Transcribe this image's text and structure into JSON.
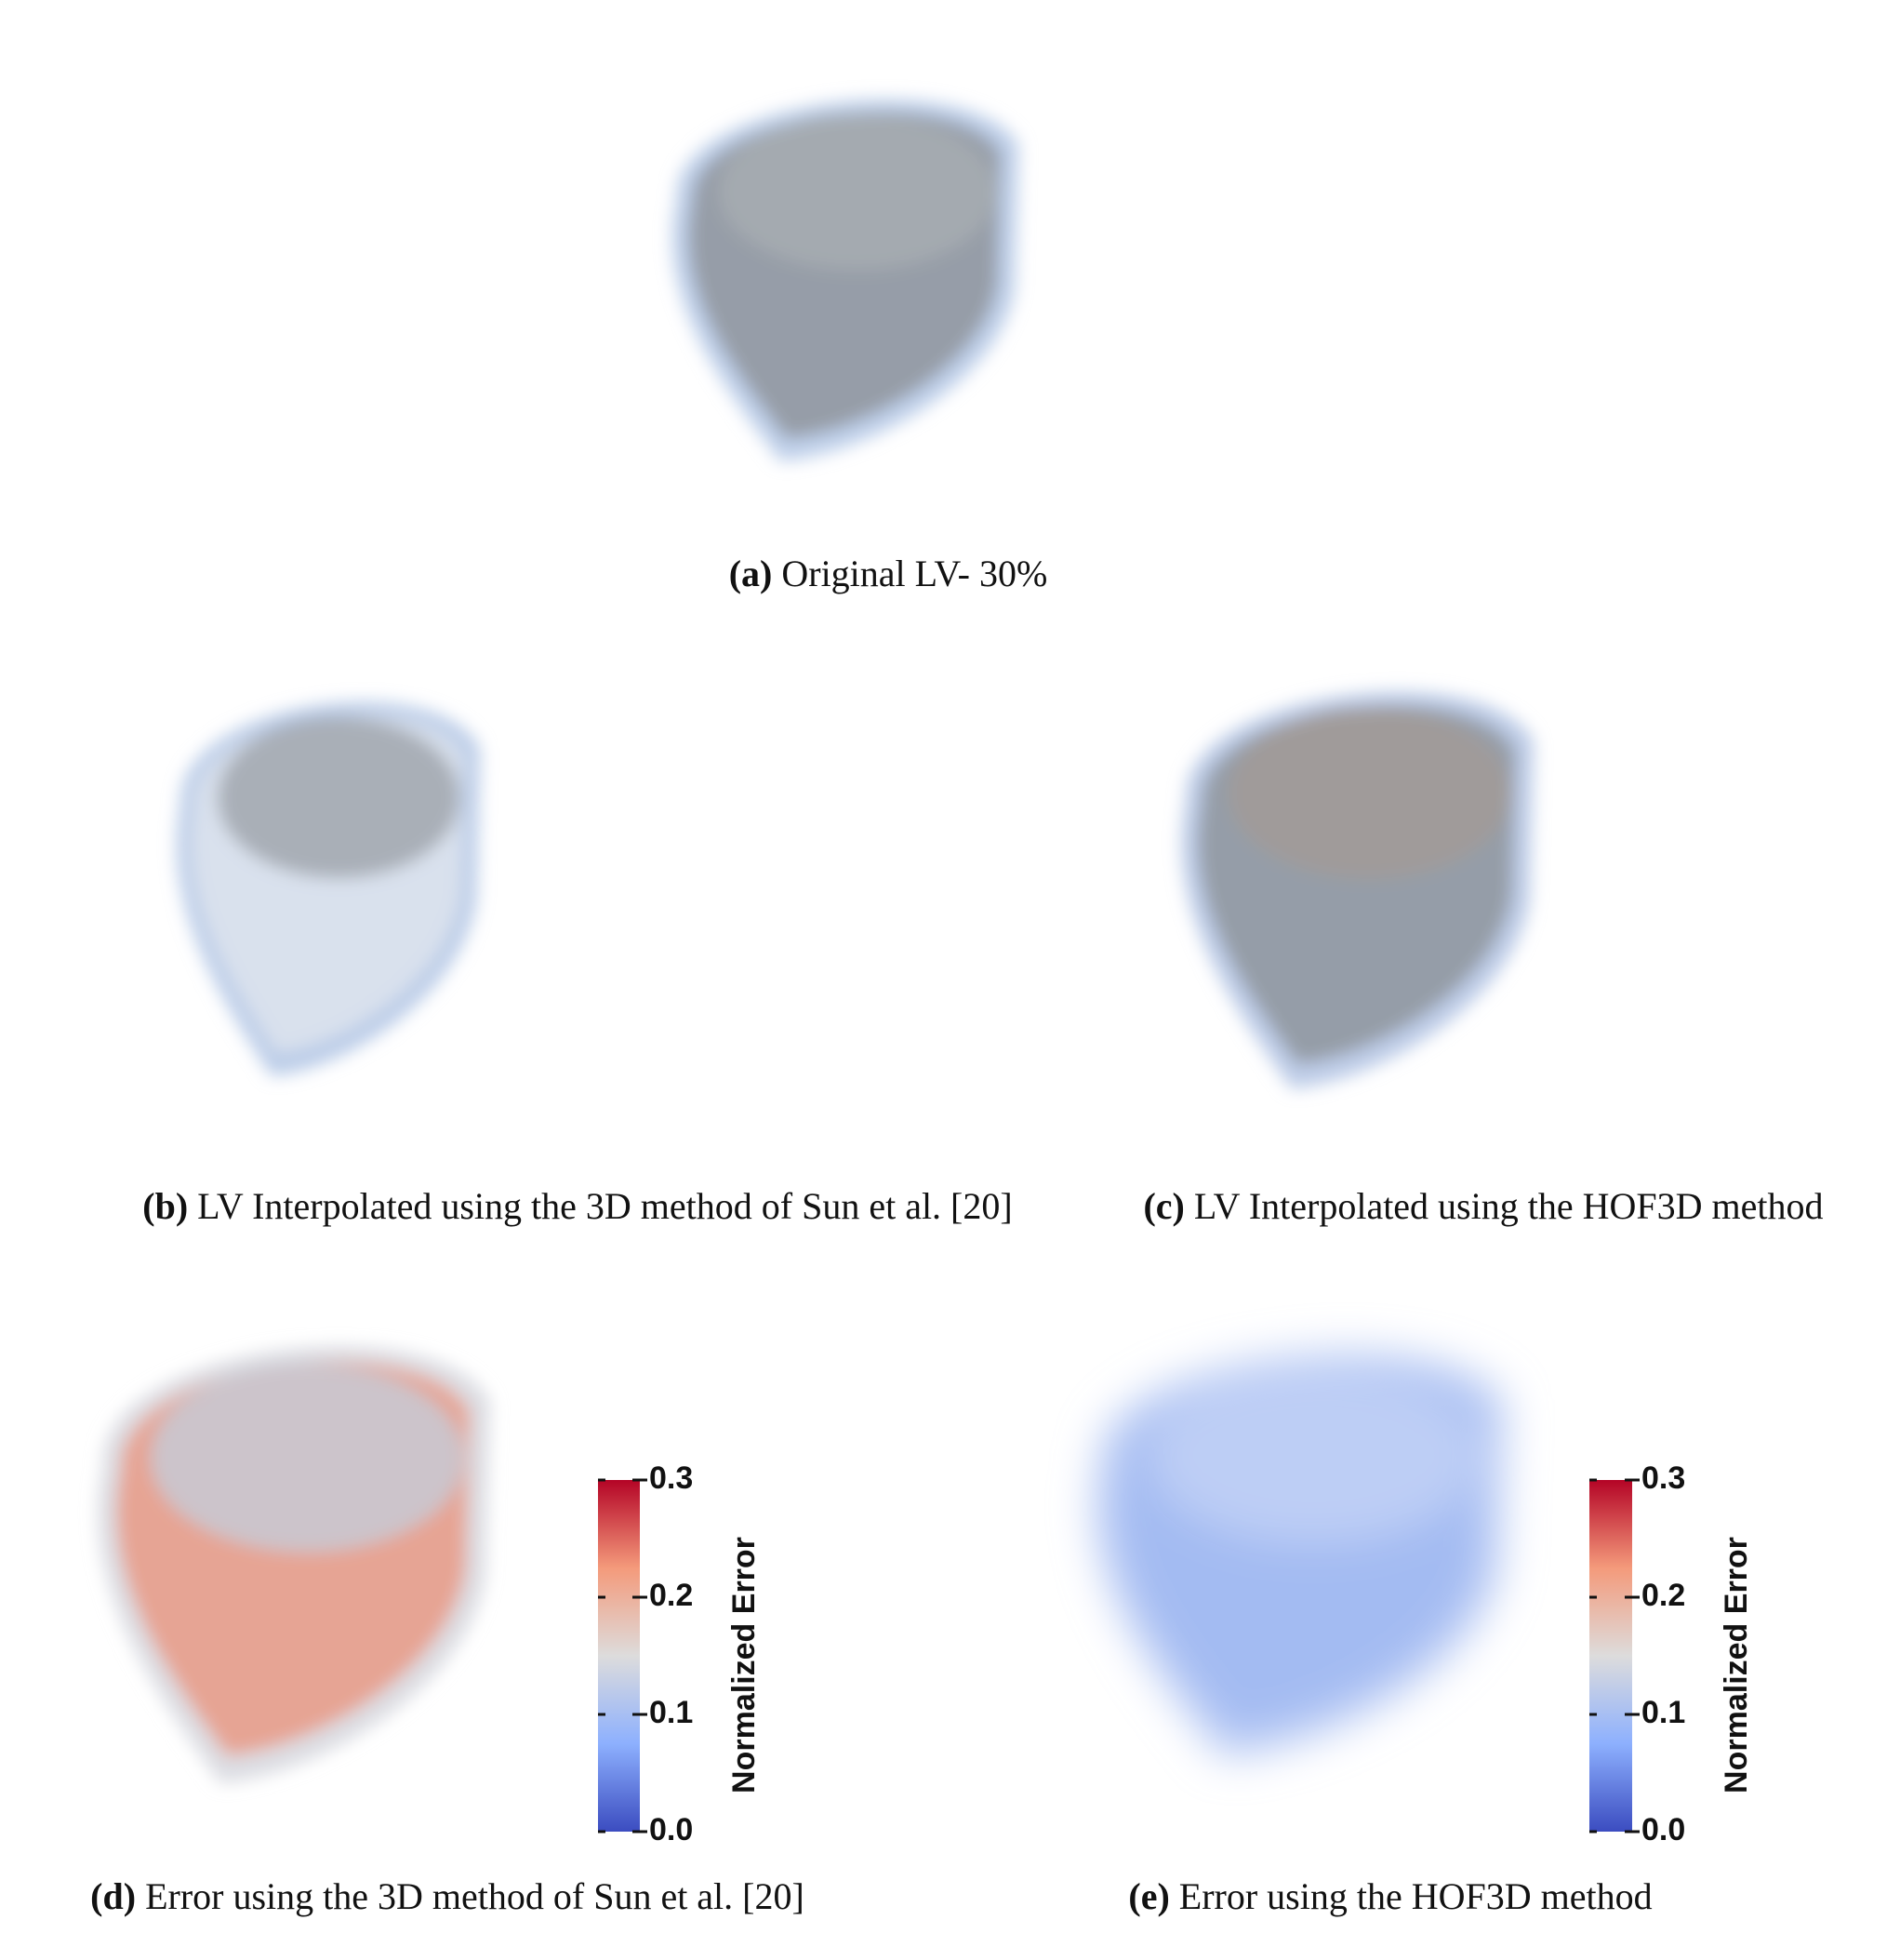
{
  "panels": [
    {
      "label": "(a)",
      "caption": "Original LV- 30%"
    },
    {
      "label": "(b)",
      "caption": "LV Interpolated using the 3D method of Sun et al. [20]"
    },
    {
      "label": "(c)",
      "caption": "LV Interpolated using the HOF3D method"
    },
    {
      "label": "(d)",
      "caption": "Error using the 3D method of Sun et al. [20]"
    },
    {
      "label": "(e)",
      "caption": "Error using the HOF3D method"
    }
  ],
  "colorbars": [
    {
      "title": "Normalized Error",
      "lim": [
        0,
        0.3
      ],
      "ticks": [
        {
          "value": 0,
          "label": "0.0"
        },
        0.1,
        0.2,
        0.3
      ],
      "colors": [
        "#3b4cc0",
        "#8db0fe",
        "#dddcdc",
        "#f49a7b",
        "#b40426"
      ]
    },
    {
      "title": "Normalized Error",
      "lim": [
        0,
        0.3
      ],
      "ticks": [
        {
          "value": 0,
          "label": "0.0"
        },
        0.1,
        0.2,
        0.3
      ],
      "colors": [
        "#3b4cc0",
        "#8db0fe",
        "#dddcdc",
        "#f49a7b",
        "#b40426"
      ]
    }
  ]
}
